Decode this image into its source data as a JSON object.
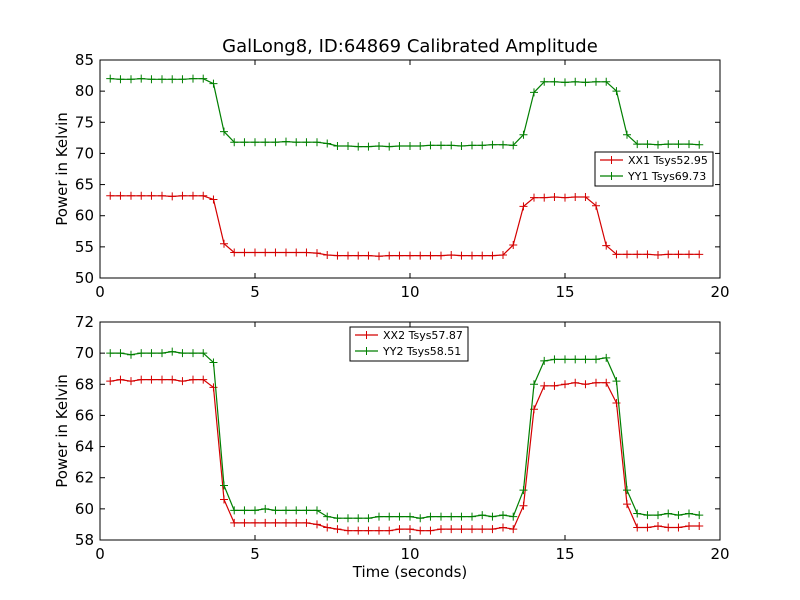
{
  "figure": {
    "title": "GalLong8, ID:64869 Calibrated Amplitude"
  },
  "chart_data": [
    {
      "type": "line",
      "title": "GalLong8, ID:64869 Calibrated Amplitude",
      "xlabel": "",
      "ylabel": "Power in Kelvin",
      "xlim": [
        0,
        20
      ],
      "ylim": [
        50,
        85
      ],
      "xticks": [
        0,
        5,
        10,
        15,
        20
      ],
      "yticks": [
        50,
        55,
        60,
        65,
        70,
        75,
        80,
        85
      ],
      "grid": false,
      "legend_position": "center-right",
      "x": [
        0.33,
        0.66,
        1.0,
        1.33,
        1.66,
        2.0,
        2.33,
        2.66,
        3.0,
        3.33,
        3.66,
        4.0,
        4.33,
        4.66,
        5.0,
        5.33,
        5.66,
        6.0,
        6.33,
        6.66,
        7.0,
        7.33,
        7.66,
        8.0,
        8.33,
        8.66,
        9.0,
        9.33,
        9.66,
        10.0,
        10.33,
        10.66,
        11.0,
        11.33,
        11.66,
        12.0,
        12.33,
        12.66,
        13.0,
        13.33,
        13.66,
        14.0,
        14.33,
        14.66,
        15.0,
        15.33,
        15.66,
        16.0,
        16.33,
        16.66,
        17.0,
        17.33,
        17.66,
        18.0,
        18.33,
        18.66,
        19.0,
        19.33
      ],
      "series": [
        {
          "name": "XX1 Tsys52.95",
          "color": "#d40000",
          "values": [
            63.2,
            63.2,
            63.2,
            63.2,
            63.2,
            63.2,
            63.1,
            63.2,
            63.2,
            63.2,
            62.6,
            55.5,
            54.1,
            54.1,
            54.1,
            54.1,
            54.1,
            54.1,
            54.1,
            54.1,
            54.0,
            53.7,
            53.6,
            53.6,
            53.6,
            53.6,
            53.5,
            53.6,
            53.6,
            53.6,
            53.6,
            53.6,
            53.6,
            53.7,
            53.6,
            53.6,
            53.6,
            53.6,
            53.7,
            55.3,
            61.5,
            62.9,
            62.9,
            63.0,
            62.9,
            63.0,
            63.0,
            61.6,
            55.2,
            53.8,
            53.8,
            53.8,
            53.8,
            53.7,
            53.8,
            53.8,
            53.8,
            53.8
          ]
        },
        {
          "name": "YY1 Tsys69.73",
          "color": "#007f00",
          "values": [
            82.0,
            81.9,
            81.9,
            82.0,
            81.9,
            81.9,
            81.9,
            81.9,
            82.0,
            82.0,
            81.2,
            73.5,
            71.8,
            71.8,
            71.8,
            71.8,
            71.8,
            71.9,
            71.8,
            71.8,
            71.8,
            71.6,
            71.2,
            71.2,
            71.1,
            71.1,
            71.2,
            71.1,
            71.2,
            71.2,
            71.2,
            71.3,
            71.3,
            71.3,
            71.2,
            71.3,
            71.3,
            71.4,
            71.4,
            71.3,
            73.0,
            79.8,
            81.5,
            81.5,
            81.4,
            81.5,
            81.4,
            81.5,
            81.5,
            80.0,
            73.0,
            71.5,
            71.5,
            71.4,
            71.5,
            71.5,
            71.5,
            71.4
          ]
        }
      ]
    },
    {
      "type": "line",
      "title": "",
      "xlabel": "Time (seconds)",
      "ylabel": "Power in Kelvin",
      "xlim": [
        0,
        20
      ],
      "ylim": [
        58,
        72
      ],
      "xticks": [
        0,
        5,
        10,
        15,
        20
      ],
      "yticks": [
        58,
        60,
        62,
        64,
        66,
        68,
        70,
        72
      ],
      "grid": false,
      "legend_position": "top-center",
      "x": [
        0.33,
        0.66,
        1.0,
        1.33,
        1.66,
        2.0,
        2.33,
        2.66,
        3.0,
        3.33,
        3.66,
        4.0,
        4.33,
        4.66,
        5.0,
        5.33,
        5.66,
        6.0,
        6.33,
        6.66,
        7.0,
        7.33,
        7.66,
        8.0,
        8.33,
        8.66,
        9.0,
        9.33,
        9.66,
        10.0,
        10.33,
        10.66,
        11.0,
        11.33,
        11.66,
        12.0,
        12.33,
        12.66,
        13.0,
        13.33,
        13.66,
        14.0,
        14.33,
        14.66,
        15.0,
        15.33,
        15.66,
        16.0,
        16.33,
        16.66,
        17.0,
        17.33,
        17.66,
        18.0,
        18.33,
        18.66,
        19.0,
        19.33
      ],
      "series": [
        {
          "name": "XX2 Tsys57.87",
          "color": "#d40000",
          "values": [
            68.2,
            68.3,
            68.2,
            68.3,
            68.3,
            68.3,
            68.3,
            68.2,
            68.3,
            68.3,
            67.8,
            60.6,
            59.1,
            59.1,
            59.1,
            59.1,
            59.1,
            59.1,
            59.1,
            59.1,
            59.0,
            58.8,
            58.7,
            58.6,
            58.6,
            58.6,
            58.6,
            58.6,
            58.7,
            58.7,
            58.6,
            58.6,
            58.7,
            58.7,
            58.7,
            58.7,
            58.7,
            58.7,
            58.8,
            58.7,
            60.2,
            66.4,
            67.9,
            67.9,
            68.0,
            68.1,
            68.0,
            68.1,
            68.1,
            66.8,
            60.3,
            58.8,
            58.8,
            58.9,
            58.8,
            58.8,
            58.9,
            58.9
          ]
        },
        {
          "name": "YY2 Tsys58.51",
          "color": "#007f00",
          "values": [
            70.0,
            70.0,
            69.9,
            70.0,
            70.0,
            70.0,
            70.1,
            70.0,
            70.0,
            70.0,
            69.4,
            61.5,
            59.9,
            59.9,
            59.9,
            60.0,
            59.9,
            59.9,
            59.9,
            59.9,
            59.9,
            59.5,
            59.4,
            59.4,
            59.4,
            59.4,
            59.5,
            59.5,
            59.5,
            59.5,
            59.4,
            59.5,
            59.5,
            59.5,
            59.5,
            59.5,
            59.6,
            59.5,
            59.6,
            59.5,
            61.2,
            68.0,
            69.5,
            69.6,
            69.6,
            69.6,
            69.6,
            69.6,
            69.7,
            68.2,
            61.2,
            59.7,
            59.6,
            59.6,
            59.7,
            59.6,
            59.7,
            59.6
          ]
        }
      ]
    }
  ]
}
